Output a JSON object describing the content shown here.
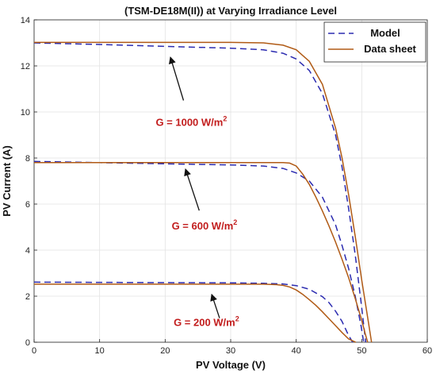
{
  "chart_data": {
    "type": "line",
    "title": "(TSM-DE18M(II)) at Varying Irradiance Level",
    "xlabel": "PV Voltage (V)",
    "ylabel": "PV Current (A)",
    "xlim": [
      0,
      60
    ],
    "ylim": [
      0,
      14
    ],
    "xticks": [
      0,
      10,
      20,
      30,
      40,
      50,
      60
    ],
    "yticks": [
      0,
      2,
      4,
      6,
      8,
      10,
      12,
      14
    ],
    "grid": true,
    "legend_position": "top-right",
    "series": [
      {
        "name": "Model",
        "style": "dashed",
        "color": "#2b2bb0",
        "curves": [
          {
            "x": [
              0,
              10,
              20,
              30,
              35,
              38,
              40,
              42,
              44,
              46,
              47,
              48,
              49,
              50,
              50.6
            ],
            "y": [
              13.0,
              12.93,
              12.85,
              12.77,
              12.7,
              12.55,
              12.3,
              11.8,
              10.8,
              9.0,
              7.6,
              5.8,
              3.8,
              1.5,
              0
            ]
          },
          {
            "x": [
              0,
              10,
              20,
              30,
              35,
              38,
              40,
              42,
              44,
              46,
              47,
              48,
              49,
              49.9,
              50.3
            ],
            "y": [
              7.85,
              7.8,
              7.75,
              7.7,
              7.65,
              7.55,
              7.35,
              7.0,
              6.3,
              5.1,
              4.2,
              3.2,
              2.0,
              0.7,
              0
            ]
          },
          {
            "x": [
              0,
              10,
              20,
              30,
              35,
              38,
              40,
              42,
              44,
              45,
              46,
              47,
              47.9,
              48.6
            ],
            "y": [
              2.61,
              2.6,
              2.59,
              2.58,
              2.56,
              2.53,
              2.46,
              2.3,
              1.98,
              1.72,
              1.35,
              0.9,
              0.35,
              0
            ]
          }
        ]
      },
      {
        "name": "Data sheet",
        "style": "solid",
        "color": "#b05a15",
        "curves": [
          {
            "x": [
              0,
              10,
              20,
              30,
              35,
              38,
              40,
              42,
              44,
              46,
              47,
              48,
              49,
              50,
              51,
              51.5
            ],
            "y": [
              13.02,
              13.02,
              13.02,
              13.02,
              13.0,
              12.9,
              12.7,
              12.2,
              11.2,
              9.3,
              8.0,
              6.4,
              4.6,
              2.7,
              0.9,
              0
            ]
          },
          {
            "x": [
              0,
              10,
              20,
              30,
              35,
              38,
              39,
              40,
              41,
              42,
              43,
              44,
              45,
              46,
              47,
              48,
              49,
              50,
              50.5,
              50.9
            ],
            "y": [
              7.8,
              7.8,
              7.8,
              7.8,
              7.8,
              7.8,
              7.78,
              7.65,
              7.3,
              6.85,
              6.3,
              5.7,
              5.05,
              4.35,
              3.6,
              2.8,
              1.9,
              0.95,
              0.4,
              0
            ]
          },
          {
            "x": [
              0,
              10,
              20,
              30,
              35,
              37,
              38,
              39,
              40,
              41,
              42,
              43,
              44,
              45,
              46,
              47,
              48,
              49.1
            ],
            "y": [
              2.52,
              2.52,
              2.52,
              2.52,
              2.52,
              2.5,
              2.47,
              2.4,
              2.27,
              2.08,
              1.85,
              1.6,
              1.32,
              1.02,
              0.72,
              0.42,
              0.14,
              0
            ]
          }
        ]
      }
    ],
    "annotations": [
      {
        "prefix": "G = 1000 W/m",
        "sup": "2",
        "x": 24,
        "y": 9.4,
        "arrow_from": [
          22.8,
          10.5
        ],
        "arrow_to": [
          20.8,
          12.38
        ]
      },
      {
        "prefix": "G = 600 W/m",
        "sup": "2",
        "x": 26,
        "y": 4.9,
        "arrow_from": [
          25.2,
          5.72
        ],
        "arrow_to": [
          23.1,
          7.52
        ]
      },
      {
        "prefix": "G = 200 W/m",
        "sup": "2",
        "x": 26.3,
        "y": 0.7,
        "arrow_from": [
          28.3,
          1.05
        ],
        "arrow_to": [
          27.1,
          2.08
        ]
      }
    ]
  }
}
